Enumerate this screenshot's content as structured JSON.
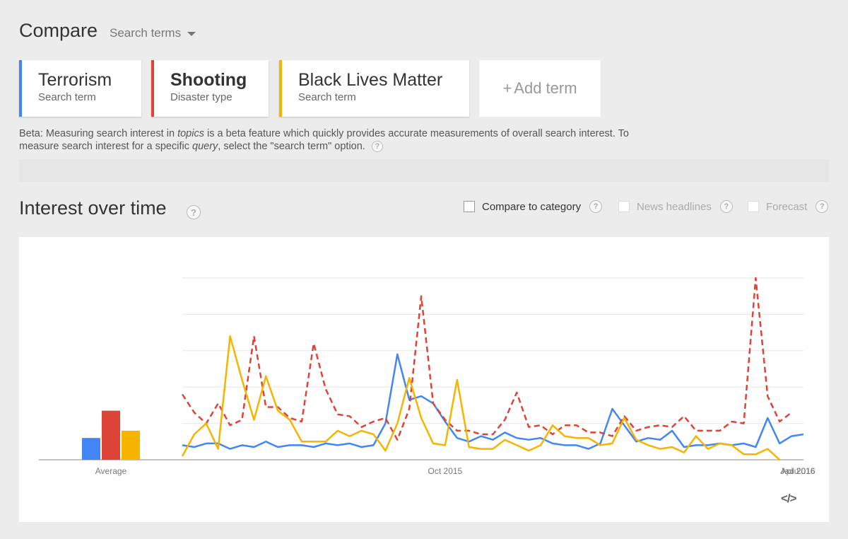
{
  "header": {
    "title": "Compare",
    "dropdown_label": "Search terms"
  },
  "terms": [
    {
      "name": "Terrorism",
      "type": "Search term",
      "color": "#4285f4"
    },
    {
      "name": "Shooting",
      "type": "Disaster type",
      "color": "#db4437"
    },
    {
      "name": "Black Lives Matter",
      "type": "Search term",
      "color": "#f4b400"
    }
  ],
  "add_term": {
    "plus": "+",
    "label": "Add term"
  },
  "beta_note": {
    "part1": "Beta: Measuring search interest in ",
    "em1": "topics",
    "part2": " is a beta feature which quickly provides accurate measurements of overall search interest. To measure search interest for a specific ",
    "em2": "query",
    "part3": ", select the \"search term\" option."
  },
  "section": {
    "title": "Interest over time",
    "help": "?"
  },
  "options": [
    {
      "label": "Compare to category",
      "enabled": true
    },
    {
      "label": "News headlines",
      "enabled": false
    },
    {
      "label": "Forecast",
      "enabled": false
    }
  ],
  "embed_label": "</>",
  "chart_data": {
    "type": "line",
    "ylim": [
      0,
      100
    ],
    "grid": true,
    "x_ticks": [
      "Oct 2015",
      "Jan 2016",
      "Apr 2016",
      "Ju..."
    ],
    "x_tick_index": [
      22,
      53,
      83,
      115
    ],
    "average_label": "Average",
    "averages": [
      12,
      27,
      16
    ],
    "series": [
      {
        "name": "Terrorism",
        "color": "#4285f4",
        "dashed": false,
        "values": [
          8,
          7,
          9,
          9,
          6,
          8,
          7,
          10,
          7,
          8,
          8,
          7,
          9,
          8,
          9,
          7,
          8,
          20,
          58,
          33,
          35,
          31,
          21,
          12,
          10,
          13,
          11,
          15,
          12,
          11,
          12,
          9,
          8,
          8,
          6,
          9,
          28,
          19,
          10,
          12,
          11,
          16,
          7,
          8,
          8,
          9,
          8,
          9,
          7,
          23,
          9,
          13,
          14
        ]
      },
      {
        "name": "Shooting",
        "color": "#db4437",
        "dashed": true,
        "values": [
          36,
          26,
          20,
          31,
          19,
          22,
          68,
          29,
          29,
          23,
          21,
          64,
          39,
          25,
          24,
          18,
          21,
          23,
          11,
          28,
          90,
          31,
          22,
          16,
          16,
          14,
          14,
          22,
          37,
          18,
          19,
          14,
          19,
          19,
          15,
          15,
          13,
          24,
          16,
          18,
          19,
          18,
          24,
          16,
          16,
          16,
          21,
          20,
          100,
          35,
          21,
          26
        ]
      },
      {
        "name": "Black Lives Matter",
        "color": "#f4b400",
        "dashed": false,
        "values": [
          2,
          14,
          20,
          6,
          68,
          44,
          22,
          46,
          27,
          22,
          10,
          10,
          10,
          16,
          13,
          16,
          14,
          5,
          20,
          45,
          23,
          9,
          8,
          44,
          7,
          6,
          6,
          11,
          8,
          5,
          8,
          19,
          13,
          12,
          12,
          8,
          9,
          23,
          11,
          8,
          6,
          7,
          4,
          13,
          6,
          9,
          8,
          3,
          3,
          6,
          0
        ]
      }
    ]
  }
}
